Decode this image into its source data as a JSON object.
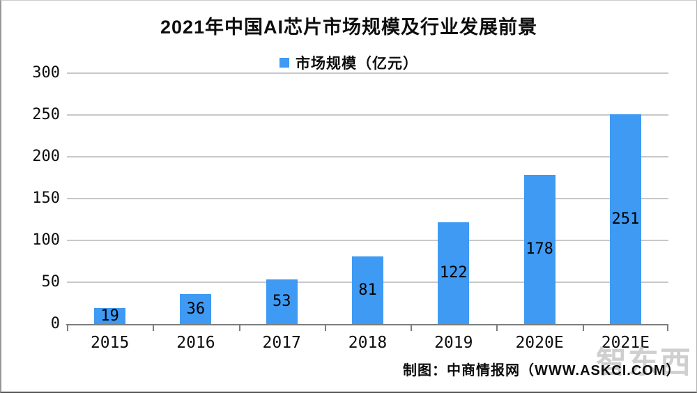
{
  "title": "2021年中国AI芯片市场规模及行业发展前景",
  "legend": {
    "label": "市场规模（亿元）"
  },
  "footer": {
    "credit": "制图：中商情报网（WWW.ASKCI.COM）"
  },
  "watermark": "智东西",
  "colors": {
    "bar": "#3E9AF3",
    "gridline": "#c8c8c8",
    "axis": "#7d7d7d",
    "text": "#0d0d0d"
  },
  "chart_data": {
    "type": "bar",
    "title": "2021年中国AI芯片市场规模及行业发展前景",
    "legend_entries": [
      "市场规模（亿元）"
    ],
    "legend_position": "top",
    "categories": [
      "2015",
      "2016",
      "2017",
      "2018",
      "2019",
      "2020E",
      "2021E"
    ],
    "values": [
      19,
      36,
      53,
      81,
      122,
      178,
      251
    ],
    "unit": "亿元",
    "xlabel": "",
    "ylabel": "市场规模（亿元）",
    "ylim": [
      0,
      300
    ],
    "yticks": [
      0,
      50,
      100,
      150,
      200,
      250,
      300
    ],
    "grid": true,
    "data_labels": "inside-center"
  }
}
